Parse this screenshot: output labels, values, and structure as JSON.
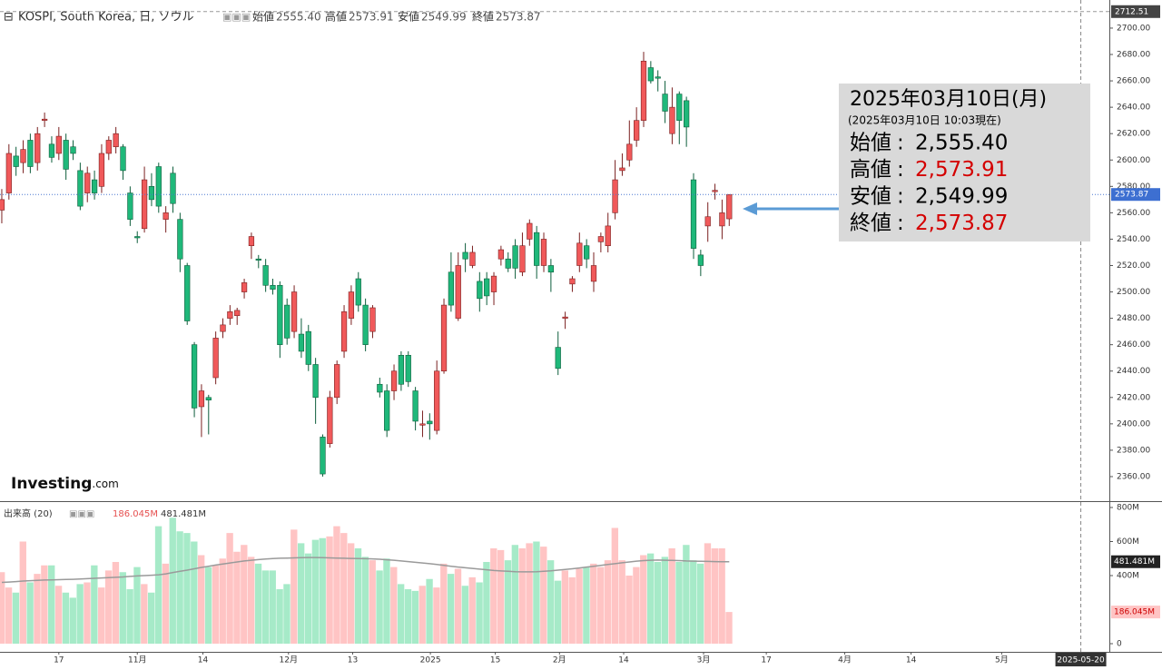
{
  "chart_data": {
    "type": "candlestick",
    "header": {
      "symbol": "KOSPI, South Korea, 日, ソウル",
      "open_label": "始値",
      "open": "2555.40",
      "high_label": "高値",
      "high": "2573.91",
      "low_label": "安値",
      "low": "2549.99",
      "close_label": "終値",
      "close": "2573.87"
    },
    "logo": "Investing",
    "logo_suffix": ".com",
    "info_box": {
      "title": "2025年03月10日(月)",
      "subtitle": "(2025年03月10日 10:03現在)",
      "rows": [
        {
          "label": "始値",
          "sep": ":",
          "value": "2,555.40",
          "color": "#000000"
        },
        {
          "label": "高値",
          "sep": ":",
          "value": "2,573.91",
          "color": "#d40000"
        },
        {
          "label": "安値",
          "sep": ":",
          "value": "2,549.99",
          "color": "#000000"
        },
        {
          "label": "終値",
          "sep": ":",
          "value": "2,573.87",
          "color": "#d40000"
        }
      ]
    },
    "up_color": "#f0595a",
    "down_color": "#1fb87a",
    "volume_up_color": "#ffc4c4",
    "volume_down_color": "#a6eac8",
    "ma_color": "#9a9a9a",
    "candles": [
      [
        2562,
        2578,
        2552,
        2570
      ],
      [
        2575,
        2612,
        2570,
        2605
      ],
      [
        2603,
        2610,
        2588,
        2595
      ],
      [
        2598,
        2615,
        2590,
        2608
      ],
      [
        2615,
        2620,
        2590,
        2595
      ],
      [
        2598,
        2625,
        2592,
        2620
      ],
      [
        2630,
        2636,
        2625,
        2631
      ],
      [
        2612,
        2618,
        2598,
        2602
      ],
      [
        2605,
        2625,
        2600,
        2618
      ],
      [
        2615,
        2620,
        2585,
        2593
      ],
      [
        2610,
        2615,
        2600,
        2605
      ],
      [
        2592,
        2598,
        2562,
        2565
      ],
      [
        2575,
        2595,
        2568,
        2590
      ],
      [
        2585,
        2592,
        2570,
        2575
      ],
      [
        2580,
        2612,
        2575,
        2605
      ],
      [
        2605,
        2618,
        2600,
        2615
      ],
      [
        2610,
        2625,
        2605,
        2620
      ],
      [
        2610,
        2612,
        2585,
        2592
      ],
      [
        2575,
        2580,
        2550,
        2555
      ],
      [
        2542,
        2546,
        2537,
        2541
      ],
      [
        2548,
        2595,
        2545,
        2585
      ],
      [
        2580,
        2590,
        2565,
        2570
      ],
      [
        2595,
        2598,
        2560,
        2565
      ],
      [
        2555,
        2565,
        2545,
        2560
      ],
      [
        2590,
        2595,
        2560,
        2567
      ],
      [
        2555,
        2560,
        2515,
        2525
      ],
      [
        2520,
        2522,
        2475,
        2478
      ],
      [
        2460,
        2462,
        2405,
        2412
      ],
      [
        2413,
        2430,
        2390,
        2425
      ],
      [
        2420,
        2422,
        2392,
        2418
      ],
      [
        2435,
        2470,
        2430,
        2465
      ],
      [
        2470,
        2480,
        2465,
        2475
      ],
      [
        2480,
        2490,
        2475,
        2485
      ],
      [
        2482,
        2488,
        2475,
        2486
      ],
      [
        2500,
        2510,
        2495,
        2507
      ],
      [
        2535,
        2545,
        2525,
        2542
      ],
      [
        2525,
        2528,
        2518,
        2524
      ],
      [
        2520,
        2525,
        2500,
        2505
      ],
      [
        2505,
        2510,
        2498,
        2502
      ],
      [
        2505,
        2508,
        2450,
        2460
      ],
      [
        2490,
        2495,
        2460,
        2465
      ],
      [
        2470,
        2505,
        2465,
        2500
      ],
      [
        2468,
        2480,
        2450,
        2455
      ],
      [
        2470,
        2475,
        2440,
        2445
      ],
      [
        2445,
        2450,
        2400,
        2420
      ],
      [
        2390,
        2392,
        2360,
        2362
      ],
      [
        2385,
        2425,
        2382,
        2420
      ],
      [
        2420,
        2448,
        2415,
        2445
      ],
      [
        2455,
        2490,
        2450,
        2485
      ],
      [
        2480,
        2505,
        2475,
        2500
      ],
      [
        2510,
        2515,
        2485,
        2490
      ],
      [
        2490,
        2495,
        2455,
        2460
      ],
      [
        2470,
        2490,
        2465,
        2488
      ],
      [
        2430,
        2435,
        2420,
        2424
      ],
      [
        2425,
        2430,
        2390,
        2395
      ],
      [
        2425,
        2445,
        2418,
        2440
      ],
      [
        2452,
        2455,
        2425,
        2430
      ],
      [
        2452,
        2455,
        2428,
        2432
      ],
      [
        2425,
        2428,
        2395,
        2402
      ],
      [
        2399,
        2410,
        2390,
        2400
      ],
      [
        2402,
        2408,
        2388,
        2400
      ],
      [
        2395,
        2448,
        2392,
        2440
      ],
      [
        2440,
        2495,
        2438,
        2490
      ],
      [
        2515,
        2530,
        2485,
        2490
      ],
      [
        2480,
        2530,
        2478,
        2520
      ],
      [
        2530,
        2537,
        2515,
        2525
      ],
      [
        2520,
        2535,
        2518,
        2530
      ],
      [
        2508,
        2515,
        2485,
        2495
      ],
      [
        2510,
        2515,
        2490,
        2497
      ],
      [
        2500,
        2515,
        2490,
        2512
      ],
      [
        2525,
        2535,
        2520,
        2532
      ],
      [
        2525,
        2530,
        2515,
        2518
      ],
      [
        2535,
        2540,
        2510,
        2518
      ],
      [
        2515,
        2545,
        2512,
        2535
      ],
      [
        2540,
        2555,
        2535,
        2552
      ],
      [
        2545,
        2550,
        2510,
        2520
      ],
      [
        2520,
        2545,
        2515,
        2540
      ],
      [
        2520,
        2525,
        2500,
        2515
      ],
      [
        2458,
        2470,
        2437,
        2442
      ],
      [
        2480,
        2485,
        2472,
        2481
      ],
      [
        2506,
        2512,
        2500,
        2510
      ],
      [
        2520,
        2545,
        2515,
        2537
      ],
      [
        2535,
        2540,
        2518,
        2525
      ],
      [
        2508,
        2530,
        2500,
        2520
      ],
      [
        2538,
        2545,
        2530,
        2542
      ],
      [
        2535,
        2560,
        2530,
        2550
      ],
      [
        2560,
        2600,
        2555,
        2585
      ],
      [
        2592,
        2605,
        2588,
        2594
      ],
      [
        2600,
        2630,
        2595,
        2612
      ],
      [
        2615,
        2640,
        2610,
        2630
      ],
      [
        2630,
        2682,
        2625,
        2675
      ],
      [
        2670,
        2675,
        2658,
        2660
      ],
      [
        2663,
        2668,
        2652,
        2662
      ],
      [
        2650,
        2660,
        2628,
        2637
      ],
      [
        2620,
        2655,
        2612,
        2640
      ],
      [
        2650,
        2652,
        2612,
        2630
      ],
      [
        2645,
        2648,
        2610,
        2625
      ],
      [
        2585,
        2590,
        2525,
        2533
      ],
      [
        2528,
        2532,
        2512,
        2520
      ],
      [
        2550,
        2568,
        2538,
        2557
      ],
      [
        2576,
        2582,
        2570,
        2577
      ],
      [
        2550,
        2570,
        2540,
        2560
      ],
      [
        2555.4,
        2573.91,
        2549.99,
        2573.87
      ]
    ],
    "volumes": [
      420,
      330,
      300,
      600,
      360,
      410,
      460,
      460,
      340,
      300,
      270,
      350,
      360,
      460,
      330,
      430,
      480,
      420,
      320,
      450,
      350,
      300,
      690,
      470,
      740,
      660,
      650,
      600,
      520,
      450,
      460,
      500,
      650,
      540,
      580,
      510,
      470,
      430,
      430,
      320,
      350,
      670,
      590,
      530,
      610,
      620,
      630,
      690,
      650,
      590,
      560,
      510,
      490,
      430,
      500,
      450,
      350,
      320,
      310,
      340,
      380,
      330,
      470,
      410,
      440,
      340,
      390,
      360,
      480,
      560,
      550,
      490,
      580,
      560,
      590,
      600,
      570,
      490,
      370,
      430,
      390,
      440,
      450,
      470,
      450,
      490,
      680,
      490,
      400,
      450,
      520,
      530,
      480,
      510,
      560,
      480,
      580,
      490,
      470,
      590,
      560,
      560,
      186.045
    ],
    "ma": [
      360,
      362,
      365,
      368,
      370,
      372,
      374,
      375,
      376,
      377,
      378,
      380,
      382,
      384,
      386,
      388,
      390,
      392,
      395,
      398,
      400,
      402,
      405,
      410,
      418,
      425,
      432,
      440,
      448,
      455,
      462,
      468,
      474,
      480,
      486,
      490,
      494,
      497,
      500,
      502,
      503,
      504,
      505,
      506,
      506,
      505,
      504,
      503,
      502,
      501,
      500,
      499,
      498,
      496,
      493,
      490,
      486,
      482,
      478,
      474,
      470,
      465,
      460,
      455,
      450,
      446,
      442,
      438,
      434,
      430,
      427,
      425,
      423,
      422,
      422,
      423,
      425,
      428,
      432,
      436,
      440,
      445,
      450,
      455,
      460,
      465,
      470,
      475,
      480,
      485,
      488,
      490,
      491,
      490,
      489,
      488,
      486,
      485,
      484,
      483,
      482,
      481.8,
      481.481
    ],
    "volume_header": {
      "title": "出来高 (20)",
      "volume": "186.045M",
      "ma": "481.481M"
    },
    "ylim": [
      2341.4,
      2721.3
    ],
    "yticks": [
      {
        "value": 2360,
        "label": "2360.00"
      },
      {
        "value": 2380,
        "label": "2380.00"
      },
      {
        "value": 2400,
        "label": "2400.00"
      },
      {
        "value": 2420,
        "label": "2420.00"
      },
      {
        "value": 2440,
        "label": "2440.00"
      },
      {
        "value": 2460,
        "label": "2460.00"
      },
      {
        "value": 2480,
        "label": "2480.00"
      },
      {
        "value": 2500,
        "label": "2500.00"
      },
      {
        "value": 2520,
        "label": "2520.00"
      },
      {
        "value": 2540,
        "label": "2540.00"
      },
      {
        "value": 2560,
        "label": "2560.00"
      },
      {
        "value": 2580,
        "label": "2580.00"
      },
      {
        "value": 2600,
        "label": "2600.00"
      },
      {
        "value": 2620,
        "label": "2620.00"
      },
      {
        "value": 2640,
        "label": "2640.00"
      },
      {
        "value": 2660,
        "label": "2660.00"
      },
      {
        "value": 2680,
        "label": "2680.00"
      },
      {
        "value": 2700,
        "label": "2700.00"
      }
    ],
    "top_marker": {
      "value": 2712.51,
      "label": "2712.51"
    },
    "vylim": [
      -48,
      832
    ],
    "vyticks": [
      0,
      {
        "value": 400,
        "label": "400M"
      },
      {
        "value": 600,
        "label": "600M"
      },
      {
        "value": 800,
        "label": "800M"
      }
    ],
    "xlim": [
      -0.25,
      155.3
    ],
    "xticks": [
      {
        "value": 8,
        "label": "17"
      },
      {
        "value": 19,
        "label": "11月"
      },
      {
        "value": 28.2,
        "label": "14"
      },
      {
        "value": 40.2,
        "label": "12月"
      },
      {
        "value": 49.2,
        "label": "13"
      },
      {
        "value": 60.1,
        "label": "2025"
      },
      {
        "value": 69.2,
        "label": "15"
      },
      {
        "value": 78.2,
        "label": "2月"
      },
      {
        "value": 87.2,
        "label": "14"
      },
      {
        "value": 98.4,
        "label": "3月"
      },
      {
        "value": 107.2,
        "label": "17"
      },
      {
        "value": 118.2,
        "label": "4月"
      },
      {
        "value": 127.5,
        "label": "14"
      },
      {
        "value": 140.2,
        "label": "5月"
      }
    ],
    "cursor_date": {
      "value": 151.3,
      "label": "2025-05-20"
    }
  }
}
